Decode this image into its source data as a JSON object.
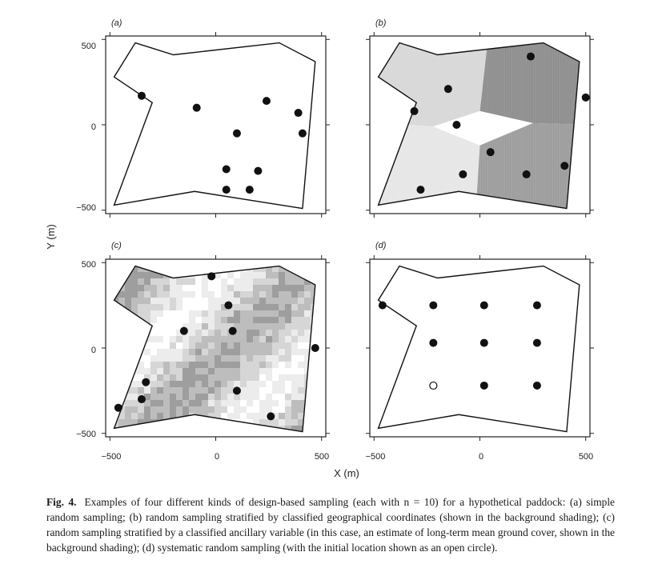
{
  "panels": [
    {
      "label": "(a)"
    },
    {
      "label": "(b)"
    },
    {
      "label": "(c)"
    },
    {
      "label": "(d)"
    }
  ],
  "axes": {
    "y_title": "Y (m)",
    "x_title": "X (m)",
    "y_ticks": [
      "500",
      "0",
      "−500"
    ],
    "x_ticks": [
      "−500",
      "0",
      "500"
    ]
  },
  "caption": {
    "fig_label": "Fig. 4.",
    "text": "Examples of four different kinds of design-based sampling (each with n = 10) for a hypothetical paddock: (a) simple random sampling; (b) random sampling stratified by classified geographical coordinates (shown in the background shading); (c) random sampling stratified by a classified ancillary variable (in this case, an estimate of long-term mean ground cover, shown in the background shading); (d) systematic random sampling (with the initial location shown as an open circle)."
  },
  "chart_data": [
    {
      "type": "scatter",
      "panel": "(a)",
      "xlim": [
        -520,
        520
      ],
      "ylim": [
        -520,
        520
      ],
      "boundary": [
        [
          -380,
          480
        ],
        [
          -200,
          410
        ],
        [
          300,
          480
        ],
        [
          470,
          370
        ],
        [
          410,
          -490
        ],
        [
          -100,
          -390
        ],
        [
          -480,
          -470
        ],
        [
          -300,
          130
        ],
        [
          -480,
          280
        ]
      ],
      "points": [
        [
          -350,
          170
        ],
        [
          -90,
          100
        ],
        [
          240,
          140
        ],
        [
          390,
          70
        ],
        [
          410,
          -50
        ],
        [
          100,
          -50
        ],
        [
          50,
          -260
        ],
        [
          200,
          -270
        ],
        [
          50,
          -380
        ],
        [
          160,
          -380
        ]
      ]
    },
    {
      "type": "scatter",
      "panel": "(b)",
      "xlim": [
        -520,
        520
      ],
      "ylim": [
        -520,
        520
      ],
      "boundary": [
        [
          -380,
          480
        ],
        [
          -200,
          410
        ],
        [
          300,
          480
        ],
        [
          470,
          370
        ],
        [
          410,
          -490
        ],
        [
          -100,
          -390
        ],
        [
          -480,
          -470
        ],
        [
          -300,
          130
        ],
        [
          -480,
          280
        ]
      ],
      "points": [
        [
          240,
          400
        ],
        [
          -150,
          210
        ],
        [
          -310,
          80
        ],
        [
          500,
          160
        ],
        [
          -110,
          0
        ],
        [
          50,
          -160
        ],
        [
          -280,
          -380
        ],
        [
          -80,
          -290
        ],
        [
          220,
          -290
        ],
        [
          400,
          -240
        ]
      ],
      "background": "shaded strata by classified geographical coordinates"
    },
    {
      "type": "scatter",
      "panel": "(c)",
      "xlim": [
        -520,
        520
      ],
      "ylim": [
        -520,
        520
      ],
      "boundary": [
        [
          -380,
          480
        ],
        [
          -200,
          410
        ],
        [
          300,
          480
        ],
        [
          470,
          370
        ],
        [
          410,
          -490
        ],
        [
          -100,
          -390
        ],
        [
          -480,
          -470
        ],
        [
          -300,
          130
        ],
        [
          -480,
          280
        ]
      ],
      "points": [
        [
          -20,
          420
        ],
        [
          60,
          250
        ],
        [
          -150,
          100
        ],
        [
          80,
          100
        ],
        [
          470,
          0
        ],
        [
          -330,
          -200
        ],
        [
          -350,
          -300
        ],
        [
          -460,
          -350
        ],
        [
          100,
          -250
        ],
        [
          260,
          -400
        ]
      ],
      "background": "shaded by classified ancillary variable"
    },
    {
      "type": "scatter",
      "panel": "(d)",
      "xlim": [
        -520,
        520
      ],
      "ylim": [
        -520,
        520
      ],
      "boundary": [
        [
          -380,
          480
        ],
        [
          -200,
          410
        ],
        [
          300,
          480
        ],
        [
          470,
          370
        ],
        [
          410,
          -490
        ],
        [
          -100,
          -390
        ],
        [
          -480,
          -470
        ],
        [
          -300,
          130
        ],
        [
          -480,
          280
        ]
      ],
      "points": [
        [
          -460,
          250
        ],
        [
          -220,
          250
        ],
        [
          20,
          250
        ],
        [
          270,
          250
        ],
        [
          -220,
          30
        ],
        [
          20,
          30
        ],
        [
          270,
          30
        ],
        [
          20,
          -220
        ],
        [
          270,
          -220
        ]
      ],
      "open_points": [
        [
          -220,
          -220
        ]
      ]
    }
  ]
}
